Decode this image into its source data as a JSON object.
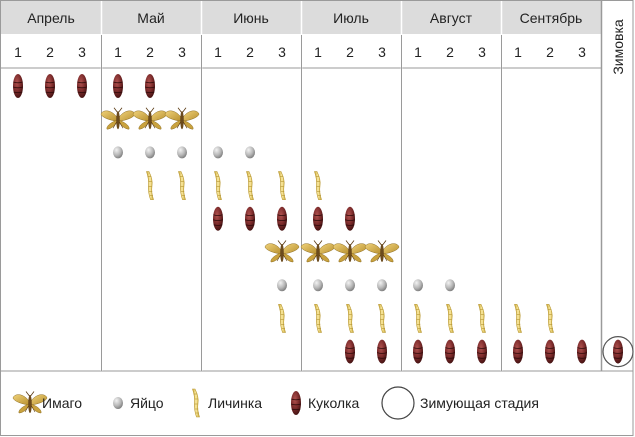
{
  "months": [
    {
      "label": "Апрель",
      "decades": [
        "1",
        "2",
        "3"
      ]
    },
    {
      "label": "Май",
      "decades": [
        "1",
        "2",
        "3"
      ]
    },
    {
      "label": "Июнь",
      "decades": [
        "1",
        "2",
        "3"
      ]
    },
    {
      "label": "Июль",
      "decades": [
        "1",
        "2",
        "3"
      ]
    },
    {
      "label": "Август",
      "decades": [
        "1",
        "2",
        "3"
      ]
    },
    {
      "label": "Сентябрь",
      "decades": [
        "1",
        "2",
        "3"
      ]
    }
  ],
  "wintering_label": "Зимовка",
  "rows": [
    {
      "stage": "pupa",
      "decades": [
        0,
        1,
        2,
        3,
        4
      ]
    },
    {
      "stage": "imago",
      "decades": [
        3,
        4,
        5
      ]
    },
    {
      "stage": "egg",
      "decades": [
        3,
        4,
        5,
        6,
        7
      ]
    },
    {
      "stage": "larva",
      "decades": [
        4,
        5,
        6,
        7,
        8,
        9
      ]
    },
    {
      "stage": "pupa",
      "decades": [
        6,
        7,
        8,
        9,
        10
      ]
    },
    {
      "stage": "imago",
      "decades": [
        8,
        9,
        10,
        11
      ]
    },
    {
      "stage": "egg",
      "decades": [
        8,
        9,
        10,
        11,
        12,
        13
      ]
    },
    {
      "stage": "larva",
      "decades": [
        8,
        9,
        10,
        11,
        12,
        13,
        14,
        15,
        16
      ]
    },
    {
      "stage": "pupa",
      "decades": [
        10,
        11,
        12,
        13,
        14,
        15,
        16,
        17
      ]
    }
  ],
  "wintering_row": {
    "stage": "pupa",
    "row": 8,
    "circled": true
  },
  "legend": [
    {
      "stage": "imago",
      "label": "Имаго"
    },
    {
      "stage": "egg",
      "label": "Яйцо"
    },
    {
      "stage": "larva",
      "label": "Личинка"
    },
    {
      "stage": "pupa",
      "label": "Куколка"
    },
    {
      "stage": "wintering",
      "label": "Зимующая стадия"
    }
  ],
  "colors": {
    "header_bg": "#dcdcdc",
    "grid_line": "#9a9a9a",
    "pupa": "#7a2a2a",
    "egg": "#b5b5b5",
    "larva": "#e8d06a",
    "imago_body": "#6b4a1c",
    "imago_wing": "#d9b24c"
  },
  "icons": {
    "imago": "moth-icon",
    "egg": "egg-icon",
    "larva": "larva-icon",
    "pupa": "pupa-icon",
    "wintering": "circle-icon"
  }
}
